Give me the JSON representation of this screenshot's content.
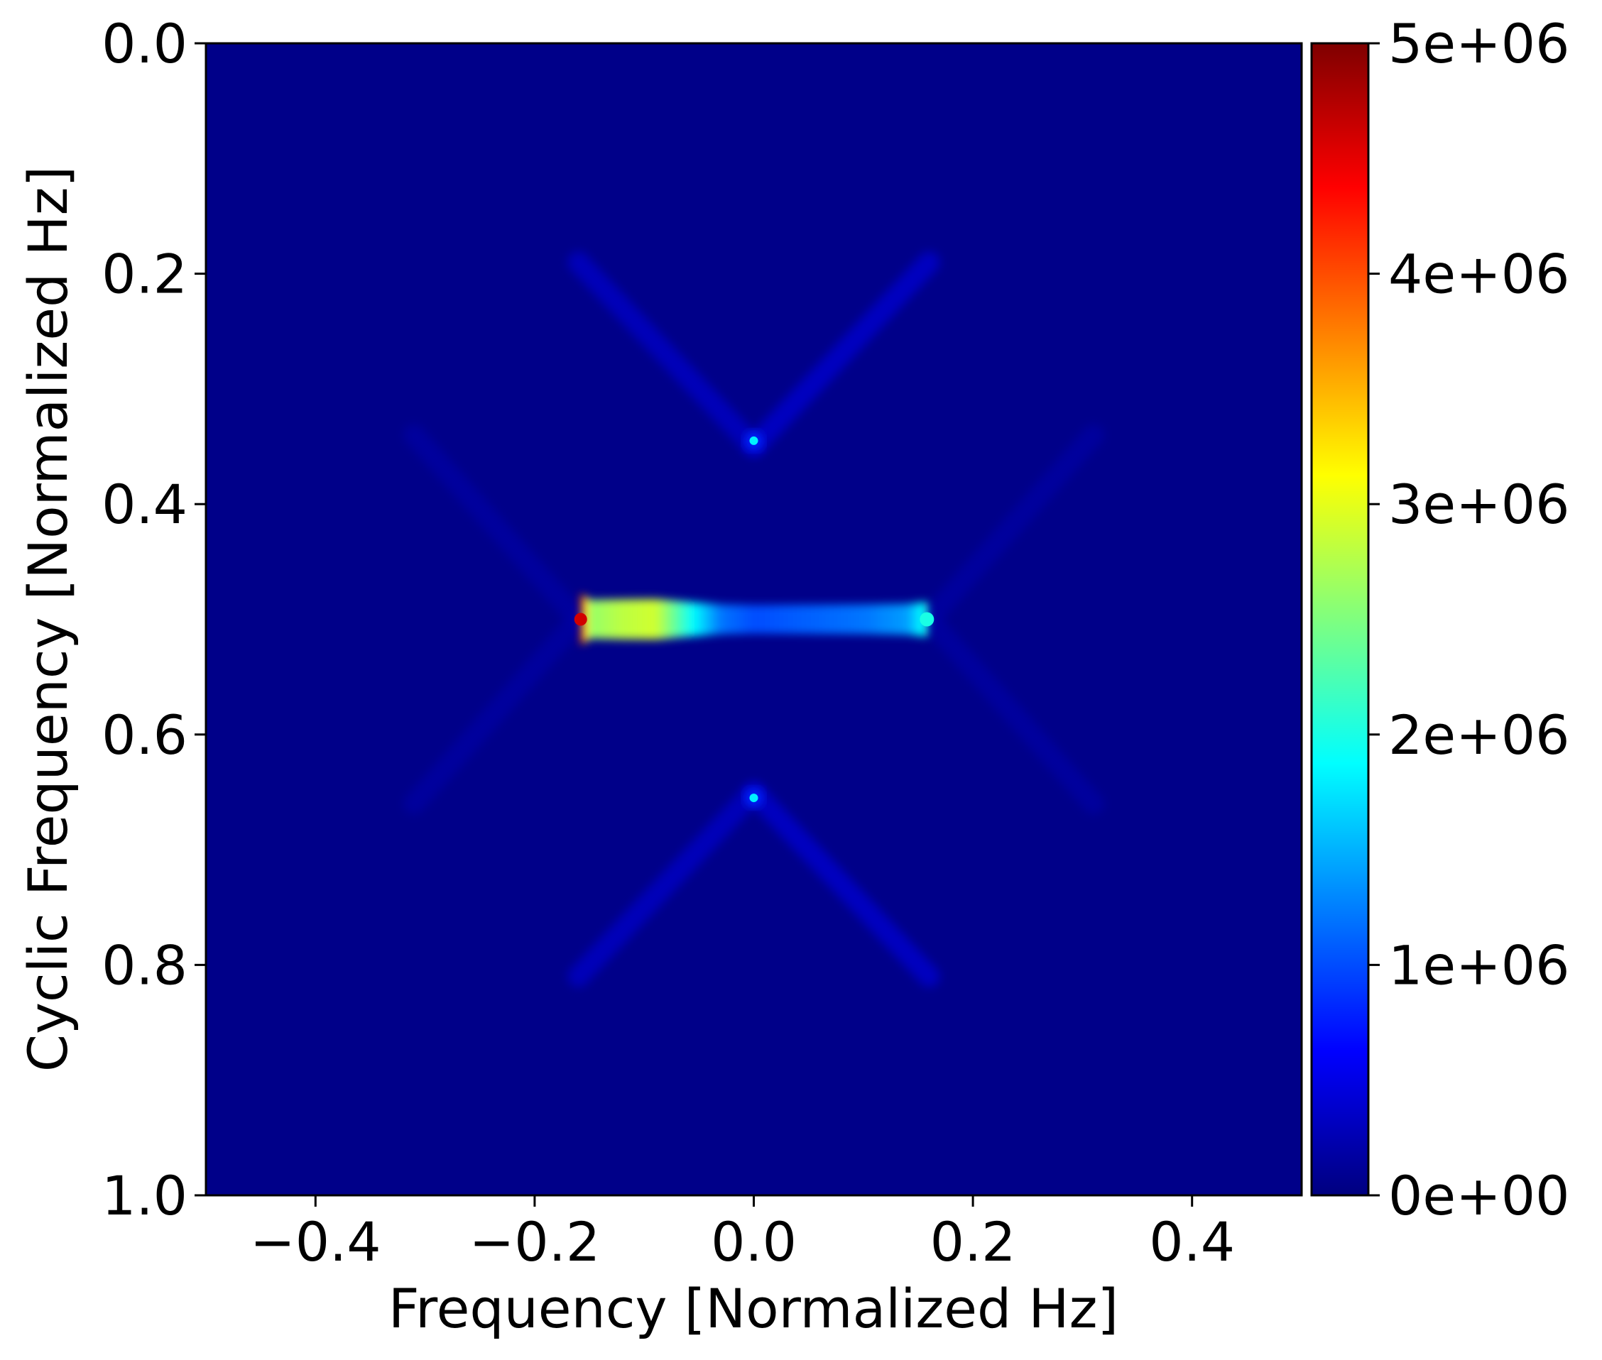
{
  "chart_data": {
    "type": "heatmap",
    "title": "",
    "xlabel": "Frequency [Normalized Hz]",
    "ylabel": "Cyclic Frequency [Normalized Hz]",
    "xlim": [
      -0.5,
      0.5
    ],
    "ylim": [
      1.0,
      0.0
    ],
    "y_inverted": true,
    "x_ticks": [
      -0.4,
      -0.2,
      0.0,
      0.2,
      0.4
    ],
    "x_tick_labels": [
      "−0.4",
      "−0.2",
      "0.0",
      "0.2",
      "0.4"
    ],
    "y_ticks": [
      0.0,
      0.2,
      0.4,
      0.6,
      0.8,
      1.0
    ],
    "y_tick_labels": [
      "0.0",
      "0.2",
      "0.4",
      "0.6",
      "0.8",
      "1.0"
    ],
    "colormap": "jet",
    "colorbar": {
      "range": [
        0,
        5000000
      ],
      "ticks": [
        0,
        1000000,
        2000000,
        3000000,
        4000000,
        5000000
      ],
      "tick_labels": [
        "0e+00",
        "1e+06",
        "2e+06",
        "3e+06",
        "4e+06",
        "5e+06"
      ],
      "stops": [
        "#00007f",
        "#0000ff",
        "#007fff",
        "#00ffff",
        "#7fff7f",
        "#ffff00",
        "#ff7f00",
        "#ff0000",
        "#7f0000"
      ]
    },
    "background_value": 50000,
    "features": {
      "main_ridge": {
        "cyclic_frequency": 0.5,
        "frequency_range": [
          -0.16,
          0.16
        ],
        "profile": [
          {
            "f": -0.158,
            "v": 4600000
          },
          {
            "f": -0.15,
            "v": 2600000
          },
          {
            "f": -0.12,
            "v": 2800000
          },
          {
            "f": -0.09,
            "v": 2900000
          },
          {
            "f": -0.06,
            "v": 2000000
          },
          {
            "f": -0.03,
            "v": 1200000
          },
          {
            "f": 0.0,
            "v": 1000000
          },
          {
            "f": 0.05,
            "v": 1100000
          },
          {
            "f": 0.1,
            "v": 1200000
          },
          {
            "f": 0.14,
            "v": 1400000
          },
          {
            "f": 0.158,
            "v": 2000000
          }
        ]
      },
      "peaks": [
        {
          "f": 0.0,
          "alpha": 0.345,
          "value": 1800000
        },
        {
          "f": 0.0,
          "alpha": 0.655,
          "value": 1800000
        }
      ],
      "diagonal_bands": [
        {
          "from": [
            -0.16,
            0.19
          ],
          "to": [
            0.0,
            0.35
          ],
          "value": 320000
        },
        {
          "from": [
            0.16,
            0.19
          ],
          "to": [
            0.0,
            0.35
          ],
          "value": 360000
        },
        {
          "from": [
            -0.16,
            0.81
          ],
          "to": [
            0.0,
            0.65
          ],
          "value": 320000
        },
        {
          "from": [
            0.16,
            0.81
          ],
          "to": [
            0.0,
            0.65
          ],
          "value": 360000
        },
        {
          "from": [
            -0.31,
            0.34
          ],
          "to": [
            -0.16,
            0.5
          ],
          "value": 160000
        },
        {
          "from": [
            0.31,
            0.34
          ],
          "to": [
            0.16,
            0.5
          ],
          "value": 160000
        },
        {
          "from": [
            -0.31,
            0.66
          ],
          "to": [
            -0.16,
            0.5
          ],
          "value": 160000
        },
        {
          "from": [
            0.31,
            0.66
          ],
          "to": [
            0.16,
            0.5
          ],
          "value": 160000
        }
      ]
    }
  }
}
